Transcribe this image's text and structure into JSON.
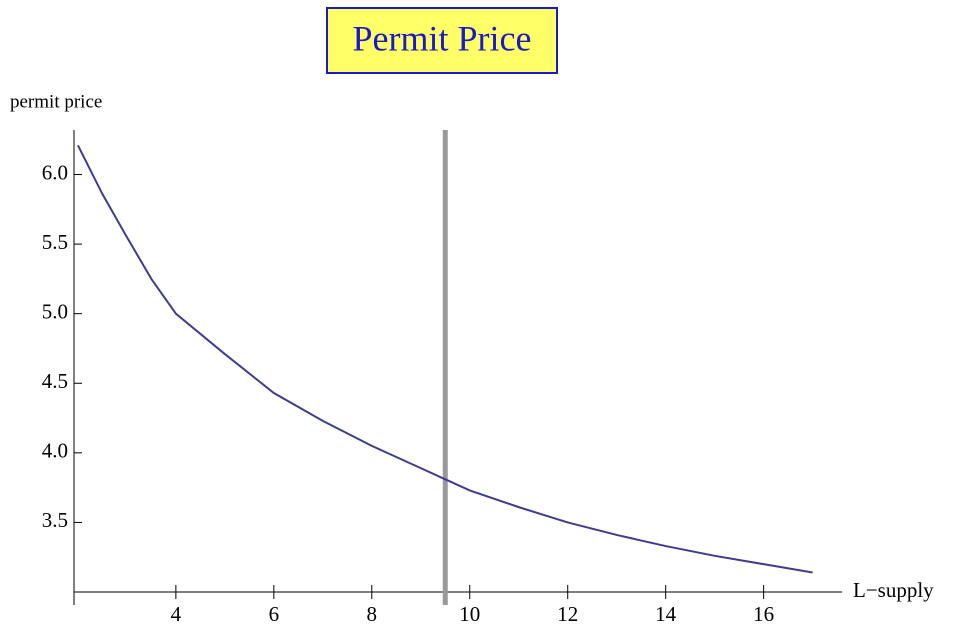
{
  "chart_data": {
    "type": "line",
    "title": "Permit Price",
    "ylabel": "permit price",
    "xlabel": "L−supply",
    "x": [
      2,
      2.5,
      3,
      3.5,
      4,
      5,
      6,
      7,
      8,
      9,
      9.5,
      10,
      11,
      12,
      13,
      14,
      15,
      16,
      17
    ],
    "series": [
      {
        "name": "permit price",
        "color": "#3d3d8f",
        "values": [
          6.21,
          5.86,
          5.55,
          5.25,
          5.0,
          4.71,
          4.43,
          4.23,
          4.05,
          3.89,
          3.81,
          3.73,
          3.61,
          3.5,
          3.41,
          3.33,
          3.26,
          3.2,
          3.14
        ]
      }
    ],
    "vline": {
      "x": 9.5,
      "color": "#999999"
    },
    "xlim": [
      1.92,
      17.6
    ],
    "ylim": [
      3.0,
      6.32
    ],
    "xticks": [
      4,
      6,
      8,
      10,
      12,
      14,
      16
    ],
    "yticks": [
      {
        "value": 3.5,
        "label": "3.5"
      },
      {
        "value": 4.0,
        "label": "4.0"
      },
      {
        "value": 4.5,
        "label": "4.5"
      },
      {
        "value": 5.0,
        "label": "5.0"
      },
      {
        "value": 5.5,
        "label": "5.5"
      },
      {
        "value": 6.0,
        "label": "6.0"
      }
    ]
  }
}
